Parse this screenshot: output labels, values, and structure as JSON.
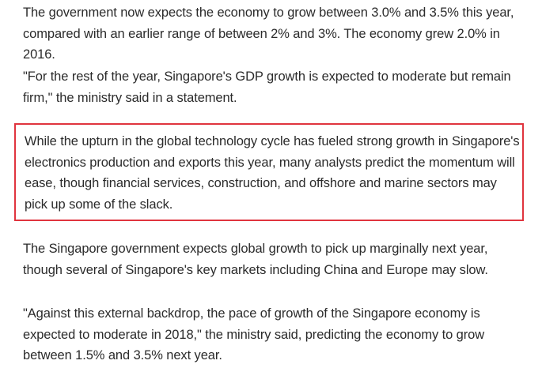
{
  "article": {
    "paragraphs": [
      "The government now expects the economy to grow between 3.0% and 3.5% this year, compared with an earlier range of between 2% and 3%. The economy grew 2.0% in 2016.",
      "\"For the rest of the year, Singapore's GDP growth is expected to moderate but remain firm,\" the ministry said in a statement.",
      "While the upturn in the global technology cycle has fueled strong growth in Singapore's electronics production and exports this year, many analysts predict the momentum will ease, though financial services, construction, and offshore and marine sectors may pick up some of the slack.",
      "The Singapore government expects global growth to pick up marginally next year, though several of Singapore's key markets including China and Europe may slow.",
      "\"Against this external backdrop, the pace of growth of the Singapore economy is expected to moderate in 2018,\" the ministry said, predicting the economy to grow between 1.5% and 3.5% next year."
    ],
    "highlight_color": "#e0343e",
    "text_color": "#2b2b2b"
  }
}
